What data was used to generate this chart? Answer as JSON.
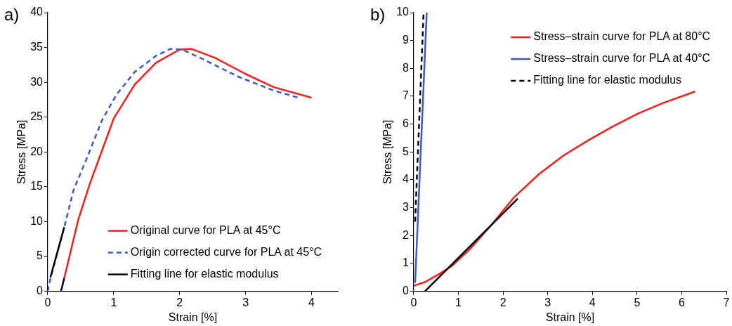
{
  "chart_data": [
    {
      "type": "line",
      "title": "a)",
      "xlabel": "Strain [%]",
      "ylabel": "Stress [MPa]",
      "xlim": [
        0,
        4.4
      ],
      "ylim": [
        0,
        40
      ],
      "xticks": [
        0,
        1,
        2,
        3,
        4
      ],
      "yticks": [
        0,
        5,
        10,
        15,
        20,
        25,
        30,
        35,
        40
      ],
      "grid": false,
      "legend": "bottom right",
      "marker": "none",
      "series": [
        {
          "name": "Original curve for PLA at 45°C",
          "color": "#ff1a1a",
          "line_style": "solid",
          "x": [
            0.25,
            0.46,
            0.64,
            1.0,
            1.32,
            1.64,
            2.0,
            2.18,
            2.54,
            3.0,
            3.43,
            4.0
          ],
          "values": [
            1.9,
            10.2,
            15.5,
            24.8,
            29.7,
            32.8,
            34.7,
            34.8,
            33.5,
            31.2,
            29.3,
            27.8
          ]
        },
        {
          "name": "Origin corrected curve for PLA at 45°C",
          "color": "#3a5bc7",
          "line_style": "dashed",
          "x": [
            0,
            0.04,
            0.25,
            0.39,
            0.61,
            0.82,
            1.04,
            1.32,
            1.64,
            1.86,
            2.04,
            2.36,
            2.89,
            3.43,
            3.8
          ],
          "values": [
            0,
            1.8,
            9.2,
            14.5,
            19.5,
            24.5,
            28.2,
            31.5,
            33.8,
            34.8,
            34.7,
            33.3,
            30.8,
            28.8,
            27.8
          ]
        },
        {
          "name": "Fitting line for elastic modulus",
          "color": "#000000",
          "line_style": "solid",
          "x": [
            0.04,
            0.25,
            0.22,
            0.2,
            0.25
          ],
          "values": [
            2,
            9.2,
            null,
            0,
            1.9
          ]
        }
      ]
    },
    {
      "type": "line",
      "title": "b)",
      "xlabel": "Strain [%]",
      "ylabel": "Stress [MPa]",
      "xlim": [
        0,
        7
      ],
      "ylim": [
        0,
        10
      ],
      "xticks": [
        0,
        1,
        2,
        3,
        4,
        5,
        6,
        7
      ],
      "yticks": [
        0,
        1,
        2,
        3,
        4,
        5,
        6,
        7,
        8,
        9,
        10
      ],
      "grid": false,
      "legend": "top right",
      "marker": "none",
      "series": [
        {
          "name": "Stress–strain curve for PLA at 80°C",
          "color": "#ff1a1a",
          "line_style": "solid",
          "x": [
            0,
            0.25,
            0.58,
            0.86,
            1.25,
            1.69,
            2.25,
            2.8,
            3.36,
            3.91,
            4.46,
            5.02,
            5.57,
            6.3
          ],
          "values": [
            0.2,
            0.33,
            0.63,
            0.92,
            1.5,
            2.29,
            3.38,
            4.2,
            4.88,
            5.42,
            5.92,
            6.38,
            6.75,
            7.17
          ]
        },
        {
          "name": "Stress–strain curve for PLA at 40°C",
          "color": "#3a5bc7",
          "line_style": "solid",
          "x": [
            0.03,
            0.29
          ],
          "values": [
            0.3,
            10
          ]
        },
        {
          "name": "Fitting line for elastic modulus",
          "color": "#000000",
          "line_style": "dashed",
          "x": [
            0.03,
            0.22
          ],
          "values": [
            2.5,
            10
          ]
        },
        {
          "color": "#000000",
          "line_style": "solid",
          "x": [
            0.25,
            2.33
          ],
          "values": [
            0,
            3.33
          ]
        }
      ]
    }
  ]
}
